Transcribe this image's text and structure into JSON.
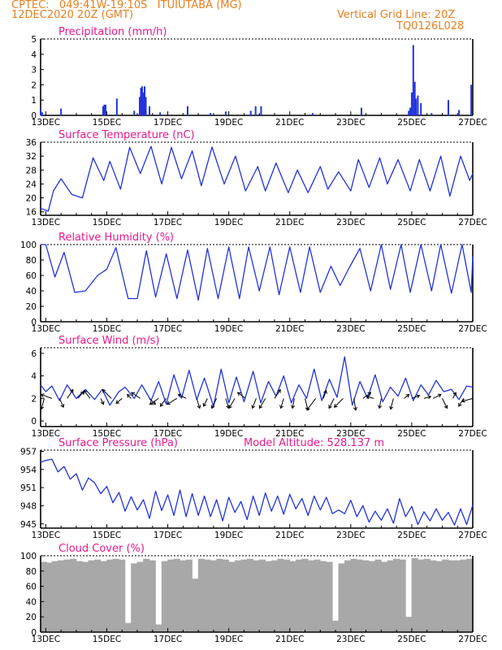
{
  "header": {
    "line1": "CPTEC:   049:41W-19:10S   ITUIUTABA (MG)",
    "line2": "12DEC2020 20Z (GMT)",
    "vgrid": "Vertical Grid Line: 20Z",
    "code": "TQ0126L028"
  },
  "colors": {
    "header": "#e87f1f",
    "title": "#e8198c",
    "line": "#2233dd",
    "cloud": "#a8a8a8",
    "vector": "#000000"
  },
  "chart_data": [
    {
      "type": "bar",
      "title": "Precipitation (mm/h)",
      "xlabel": "",
      "ylabel": "",
      "x_ticks": [
        "13DEC",
        "15DEC",
        "17DEC",
        "19DEC",
        "21DEC",
        "23DEC",
        "25DEC",
        "27DEC"
      ],
      "ylim": [
        0,
        5
      ],
      "y_ticks": [
        0,
        1,
        2,
        3,
        4,
        5
      ],
      "x": [
        12.83,
        12.88,
        13.5,
        14.88,
        14.92,
        14.96,
        15.33,
        15.9,
        16.08,
        16.12,
        16.16,
        16.2,
        16.24,
        16.28,
        16.4,
        16.75,
        17.65,
        18.4,
        18.9,
        19.72,
        19.88,
        20.06,
        21.75,
        23.35,
        24.9,
        24.95,
        25.0,
        25.05,
        25.1,
        25.14,
        25.2,
        25.3,
        25.65,
        26.2,
        26.55,
        26.95
      ],
      "values": [
        0.4,
        0.2,
        0.45,
        0.6,
        0.7,
        0.7,
        1.1,
        0.3,
        1.2,
        1.8,
        1.9,
        1.5,
        1.9,
        1.2,
        0.6,
        0.2,
        0.6,
        0.15,
        0.25,
        0.3,
        0.6,
        0.6,
        0.15,
        0.5,
        0.3,
        0.5,
        1.5,
        4.6,
        2.2,
        1.1,
        1.3,
        0.8,
        0.15,
        1.0,
        0.35,
        2.0
      ]
    },
    {
      "type": "line",
      "title": "Surface Temperature (nC)",
      "xlabel": "",
      "ylabel": "",
      "x_ticks": [
        "13DEC",
        "15DEC",
        "17DEC",
        "19DEC",
        "21DEC",
        "23DEC",
        "25DEC",
        "27DEC"
      ],
      "ylim": [
        15,
        36
      ],
      "y_ticks": [
        16,
        20,
        24,
        28,
        32,
        36
      ],
      "x": [
        12.83,
        13.08,
        13.25,
        13.5,
        13.85,
        14.2,
        14.55,
        14.9,
        15.1,
        15.45,
        15.75,
        16.1,
        16.45,
        16.8,
        17.12,
        17.45,
        17.8,
        18.1,
        18.45,
        18.85,
        19.22,
        19.55,
        19.95,
        20.2,
        20.55,
        20.95,
        21.25,
        21.6,
        22.0,
        22.25,
        22.6,
        23.0,
        23.25,
        23.6,
        23.95,
        24.2,
        24.55,
        24.95,
        25.25,
        25.6,
        25.95,
        26.25,
        26.6,
        26.9,
        27.0
      ],
      "values": [
        17,
        16.2,
        22,
        25.5,
        21,
        20,
        31.5,
        25,
        30.5,
        22.5,
        34.5,
        27,
        34.8,
        24,
        34.5,
        25.5,
        33.5,
        23.5,
        34.6,
        24,
        32,
        22,
        29,
        22,
        30,
        21.5,
        28,
        21.5,
        29,
        22.5,
        27.5,
        22,
        31,
        23,
        31.5,
        24,
        31,
        22,
        31,
        22,
        32,
        20.5,
        32,
        25,
        27
      ]
    },
    {
      "type": "line",
      "title": "Relative Humidity (%)",
      "xlabel": "",
      "ylabel": "",
      "x_ticks": [
        "13DEC",
        "15DEC",
        "17DEC",
        "19DEC",
        "21DEC",
        "23DEC",
        "25DEC",
        "27DEC"
      ],
      "ylim": [
        0,
        100
      ],
      "y_ticks": [
        0,
        20,
        40,
        60,
        80,
        100
      ],
      "x": [
        12.83,
        13.0,
        13.3,
        13.6,
        13.95,
        14.3,
        14.7,
        15.0,
        15.3,
        15.7,
        16.0,
        16.3,
        16.6,
        16.95,
        17.3,
        17.65,
        18.0,
        18.3,
        18.65,
        19.0,
        19.35,
        19.65,
        20.0,
        20.35,
        20.65,
        21.0,
        21.35,
        21.65,
        22.0,
        22.35,
        22.65,
        22.95,
        23.3,
        23.65,
        24.0,
        24.3,
        24.65,
        24.95,
        25.3,
        25.65,
        25.95,
        26.3,
        26.65,
        26.95,
        27.0
      ],
      "values": [
        100,
        100,
        58,
        90,
        38,
        40,
        60,
        68,
        96,
        30,
        30,
        92,
        32,
        88,
        30,
        93,
        28,
        95,
        30,
        97,
        30,
        97,
        40,
        97,
        35,
        97,
        38,
        97,
        38,
        72,
        47,
        70,
        95,
        40,
        100,
        42,
        100,
        38,
        100,
        40,
        100,
        37,
        100,
        38,
        85
      ]
    },
    {
      "type": "line",
      "title": "Surface Wind (m/s)",
      "xlabel": "",
      "ylabel": "",
      "x_ticks": [
        "13DEC",
        "15DEC",
        "17DEC",
        "19DEC",
        "21DEC",
        "23DEC",
        "25DEC",
        "27DEC"
      ],
      "ylim": [
        -0.5,
        6.5
      ],
      "y_ticks": [
        0,
        2,
        4,
        6
      ],
      "x": [
        12.83,
        13.0,
        13.2,
        13.45,
        13.7,
        14.0,
        14.3,
        14.6,
        14.85,
        15.1,
        15.4,
        15.6,
        15.9,
        16.15,
        16.45,
        16.7,
        16.95,
        17.2,
        17.45,
        17.7,
        17.95,
        18.2,
        18.5,
        18.75,
        19.0,
        19.25,
        19.5,
        19.8,
        20.05,
        20.3,
        20.55,
        20.8,
        21.05,
        21.3,
        21.55,
        21.8,
        22.05,
        22.3,
        22.55,
        22.8,
        23.05,
        23.3,
        23.55,
        23.8,
        24.05,
        24.3,
        24.55,
        24.8,
        25.05,
        25.3,
        25.55,
        25.8,
        26.05,
        26.3,
        26.55,
        26.8,
        27.0
      ],
      "values": [
        3.2,
        2.6,
        3.1,
        1.8,
        3.2,
        2.0,
        2.8,
        1.9,
        2.8,
        1.4,
        2.6,
        3.0,
        2.0,
        3.2,
        1.8,
        3.5,
        1.5,
        4.1,
        2.0,
        4.5,
        1.9,
        3.8,
        1.3,
        4.6,
        1.6,
        3.9,
        1.7,
        4.4,
        1.6,
        3.5,
        2.2,
        4.0,
        1.6,
        3.2,
        2.0,
        4.6,
        1.8,
        3.7,
        2.1,
        5.7,
        1.4,
        3.5,
        2.0,
        4.1,
        1.7,
        3.0,
        2.2,
        3.8,
        1.8,
        3.2,
        2.3,
        3.6,
        2.6,
        2.8,
        1.9,
        3.1,
        3.0
      ],
      "vectors": {
        "x": [
          12.95,
          13.2,
          13.45,
          13.7,
          14.05,
          14.45,
          14.8,
          15.15,
          15.5,
          15.8,
          16.1,
          16.4,
          16.7,
          16.95,
          17.3,
          17.6,
          17.95,
          18.3,
          18.6,
          18.9,
          19.2,
          19.55,
          19.9,
          20.2,
          20.5,
          20.8,
          21.15,
          21.5,
          21.85,
          22.1,
          22.45,
          22.75,
          23.1,
          23.4,
          23.75,
          24.0,
          24.4,
          24.75,
          25.0,
          25.4,
          25.7,
          26.0,
          26.35,
          26.7,
          27.0
        ],
        "u": [
          -0.3,
          -1.1,
          0.4,
          0.6,
          0.6,
          -0.6,
          0.3,
          -0.9,
          -0.6,
          -0.4,
          -0.9,
          0.6,
          -0.9,
          -0.6,
          -1.0,
          -0.8,
          0.3,
          -0.4,
          -0.5,
          0.3,
          -0.6,
          -0.8,
          -0.4,
          -0.6,
          0.6,
          -0.3,
          -0.2,
          0.3,
          -0.9,
          0.3,
          -0.5,
          -0.9,
          0.2,
          0.8,
          -0.7,
          -0.2,
          -0.3,
          0.5,
          0.8,
          0.7,
          0.8,
          0.5,
          0.3,
          -0.5,
          -1.1
        ],
        "v": [
          -1.1,
          0.4,
          -0.9,
          0.9,
          0.7,
          0.8,
          -0.6,
          0.9,
          -0.5,
          0.4,
          0.6,
          -0.6,
          -0.6,
          -0.8,
          -0.6,
          0.4,
          -1.0,
          -0.8,
          -1.0,
          -1.0,
          -1.0,
          0.6,
          -1.0,
          -1.0,
          0.9,
          -1.0,
          -1.0,
          -1.2,
          -1.2,
          0.8,
          -1.0,
          -0.9,
          -1.2,
          0.6,
          0.2,
          -1.0,
          -1.1,
          0.4,
          0.3,
          0.2,
          0.4,
          -1.0,
          0.6,
          -0.8,
          -0.3
        ]
      }
    },
    {
      "type": "line",
      "title": "Surface Pressure (hPa)",
      "annotation": "Model Altitude: 528.137 m",
      "xlabel": "",
      "ylabel": "",
      "x_ticks": [
        "13DEC",
        "15DEC",
        "17DEC",
        "19DEC",
        "21DEC",
        "23DEC",
        "25DEC",
        "27DEC"
      ],
      "ylim": [
        944.3,
        957.2
      ],
      "y_ticks": [
        945,
        948,
        951,
        954,
        957
      ],
      "x": [
        12.83,
        13.0,
        13.2,
        13.4,
        13.6,
        13.8,
        14.0,
        14.2,
        14.4,
        14.6,
        14.8,
        15.0,
        15.2,
        15.4,
        15.6,
        15.8,
        16.0,
        16.2,
        16.4,
        16.6,
        16.8,
        17.0,
        17.2,
        17.4,
        17.6,
        17.8,
        18.0,
        18.2,
        18.4,
        18.6,
        18.8,
        19.0,
        19.2,
        19.4,
        19.6,
        19.8,
        20.0,
        20.2,
        20.4,
        20.6,
        20.8,
        21.0,
        21.2,
        21.4,
        21.6,
        21.8,
        22.0,
        22.2,
        22.4,
        22.6,
        22.8,
        23.0,
        23.2,
        23.4,
        23.6,
        23.8,
        24.0,
        24.2,
        24.4,
        24.6,
        24.8,
        25.0,
        25.2,
        25.4,
        25.6,
        25.8,
        26.0,
        26.2,
        26.4,
        26.6,
        26.8,
        27.0
      ],
      "values": [
        955.2,
        955.5,
        955.7,
        953.6,
        954.5,
        952.4,
        953.3,
        950.6,
        952.6,
        951.8,
        950.0,
        951.2,
        948.5,
        950.2,
        947.1,
        949.5,
        947.3,
        949.0,
        945.9,
        950.4,
        947.2,
        949.8,
        946.4,
        950.6,
        946.2,
        950.0,
        946.4,
        949.6,
        946.2,
        949.0,
        945.5,
        949.4,
        946.9,
        948.7,
        945.7,
        949.6,
        946.4,
        950.1,
        947.1,
        949.6,
        946.6,
        949.9,
        947.5,
        949.2,
        946.4,
        949.6,
        947.3,
        949.4,
        946.7,
        947.3,
        946.7,
        948.9,
        946.2,
        948.0,
        945.3,
        947.1,
        945.6,
        947.5,
        945.1,
        949.2,
        946.2,
        947.9,
        944.9,
        947.0,
        945.5,
        947.5,
        945.6,
        946.9,
        944.8,
        947.5,
        944.9,
        948.1
      ]
    },
    {
      "type": "bar",
      "title": "Cloud Cover (%)",
      "xlabel": "",
      "ylabel": "",
      "x_ticks": [
        "13DEC",
        "15DEC",
        "17DEC",
        "19DEC",
        "21DEC",
        "23DEC",
        "25DEC",
        "27DEC"
      ],
      "ylim": [
        0,
        100
      ],
      "y_ticks": [
        0,
        20,
        40,
        60,
        80,
        100
      ],
      "x": [
        12.9,
        13.1,
        13.3,
        13.5,
        13.7,
        13.9,
        14.1,
        14.3,
        14.5,
        14.7,
        14.9,
        15.1,
        15.3,
        15.5,
        15.7,
        15.9,
        16.1,
        16.3,
        16.5,
        16.7,
        16.9,
        17.1,
        17.3,
        17.5,
        17.7,
        17.9,
        18.1,
        18.3,
        18.5,
        18.7,
        18.9,
        19.1,
        19.3,
        19.5,
        19.7,
        19.9,
        20.1,
        20.3,
        20.5,
        20.7,
        20.9,
        21.1,
        21.3,
        21.5,
        21.7,
        21.9,
        22.1,
        22.3,
        22.5,
        22.7,
        22.9,
        23.1,
        23.3,
        23.5,
        23.7,
        23.9,
        24.1,
        24.3,
        24.5,
        24.7,
        24.9,
        25.1,
        25.3,
        25.5,
        25.7,
        25.9,
        26.1,
        26.3,
        26.5,
        26.7,
        26.9
      ],
      "values": [
        92,
        91,
        93,
        94,
        95,
        96,
        93,
        92,
        94,
        95,
        93,
        95,
        96,
        95,
        12,
        90,
        92,
        96,
        94,
        10,
        93,
        95,
        96,
        94,
        95,
        70,
        96,
        95,
        94,
        96,
        95,
        92,
        94,
        95,
        96,
        94,
        95,
        93,
        94,
        96,
        95,
        93,
        95,
        96,
        94,
        95,
        93,
        92,
        15,
        90,
        94,
        96,
        95,
        94,
        93,
        95,
        92,
        94,
        96,
        95,
        20,
        97,
        95,
        96,
        94,
        93,
        95,
        94,
        94,
        95,
        96
      ]
    }
  ]
}
